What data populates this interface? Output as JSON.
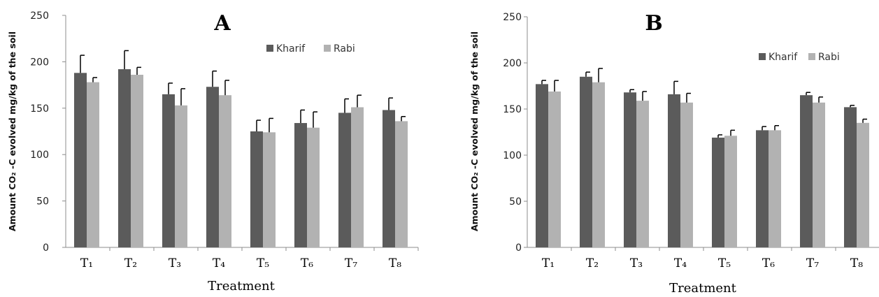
{
  "colors": {
    "kharif": "#5b5b5b",
    "rabi": "#b2b2b2",
    "axis": "#8c8c8c"
  },
  "chart_data": [
    {
      "type": "bar",
      "title": "A",
      "xlabel": "Treatment",
      "ylabel": "Amount CO₂ -C evolved mg/kg of the soil",
      "ylim": [
        0,
        250
      ],
      "yticks": [
        "0",
        "50",
        "100",
        "150",
        "200",
        "250"
      ],
      "categories": [
        "T₁",
        "T₂",
        "T₃",
        "T₄",
        "T₅",
        "T₆",
        "T₇",
        "T₈"
      ],
      "legend_position": "top-right",
      "series": [
        {
          "name": "Kharif",
          "values": [
            188,
            192,
            165,
            173,
            125,
            134,
            145,
            148
          ],
          "errors": [
            19,
            20,
            12,
            17,
            12,
            14,
            15,
            13
          ]
        },
        {
          "name": "Rabi",
          "values": [
            178,
            186,
            153,
            164,
            124,
            129,
            151,
            136
          ],
          "errors": [
            5,
            8,
            18,
            16,
            15,
            17,
            13,
            5
          ]
        }
      ]
    },
    {
      "type": "bar",
      "title": "B",
      "xlabel": "Treatment",
      "ylabel": "Amount CO₂ -C evolved mg/kg of the soil",
      "ylim": [
        0,
        250
      ],
      "yticks": [
        "0",
        "50",
        "100",
        "150",
        "200",
        "250"
      ],
      "categories": [
        "T₁",
        "T₂",
        "T₃",
        "T₄",
        "T₅",
        "T₆",
        "T₇",
        "T₈"
      ],
      "legend_position": "top-right",
      "series": [
        {
          "name": "Kharif",
          "values": [
            177,
            185,
            168,
            166,
            119,
            127,
            165,
            152
          ],
          "errors": [
            4,
            5,
            3,
            14,
            3,
            4,
            3,
            2
          ]
        },
        {
          "name": "Rabi",
          "values": [
            169,
            179,
            159,
            157,
            121,
            127,
            157,
            135
          ],
          "errors": [
            12,
            15,
            10,
            10,
            6,
            5,
            6,
            4
          ]
        }
      ]
    }
  ]
}
